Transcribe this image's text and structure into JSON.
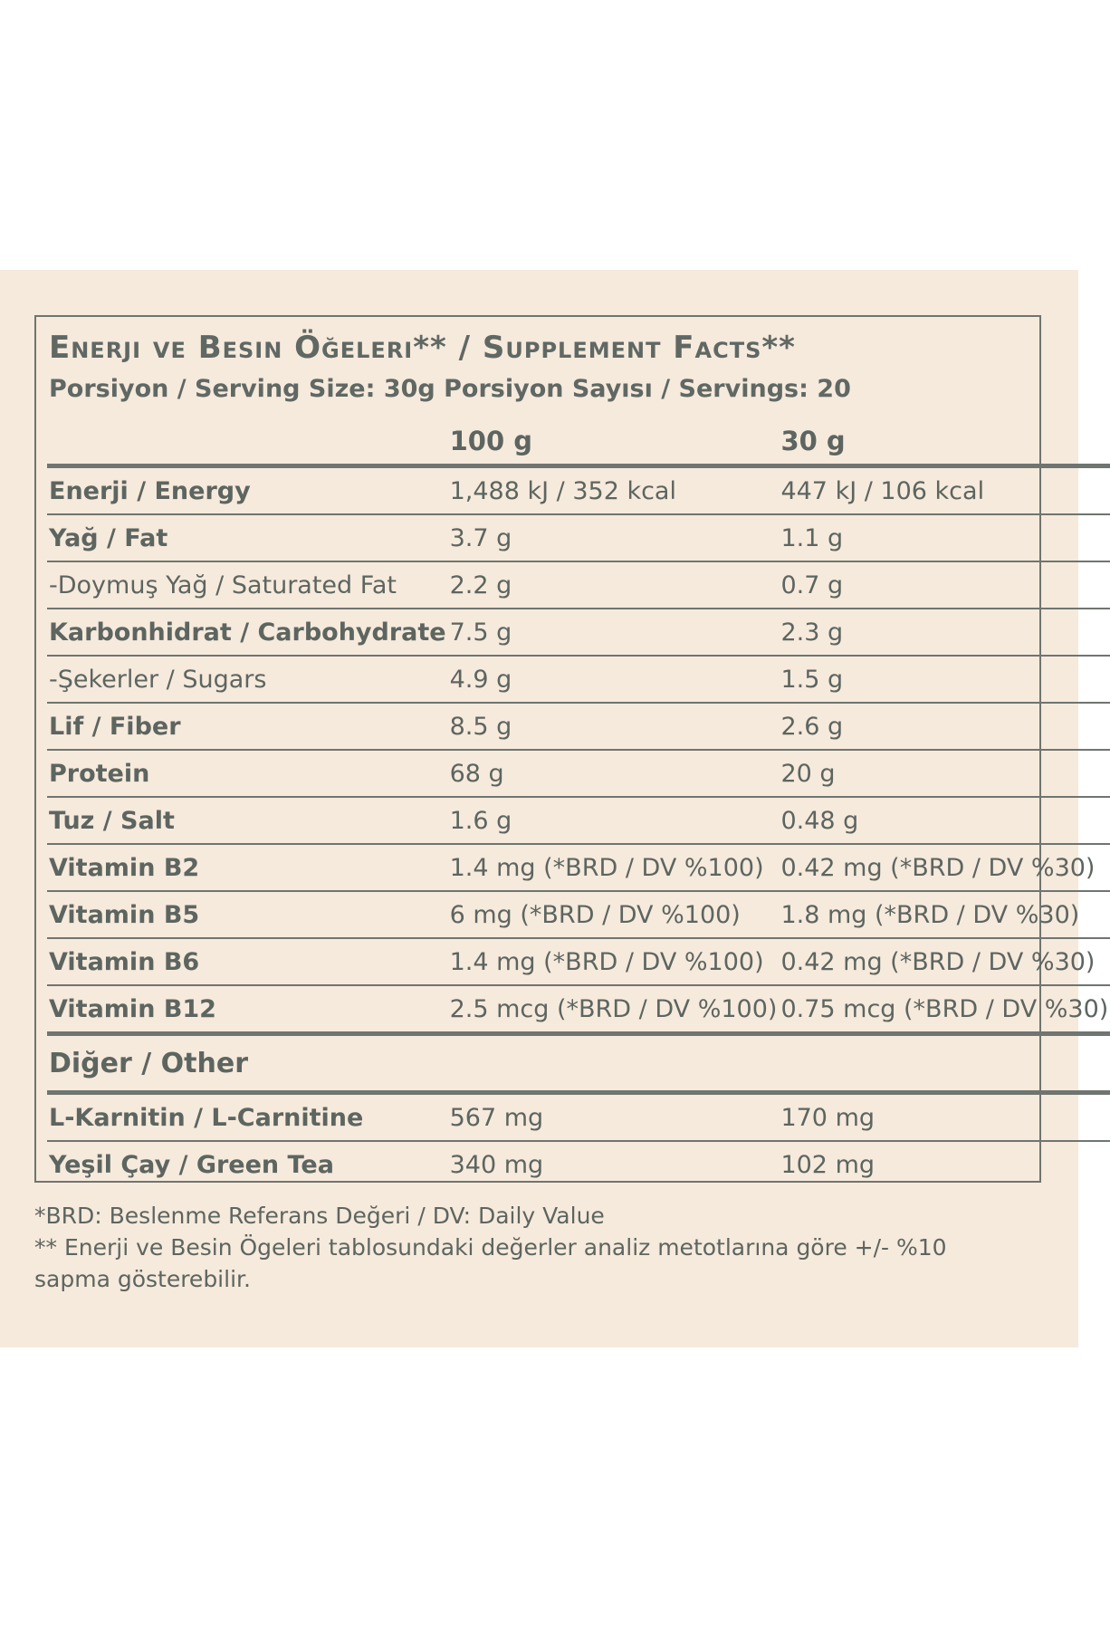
{
  "header": {
    "title": "Enerji ve Besin Öğeleri** / Supplement Facts**",
    "serving_line": "Porsiyon / Serving Size: 30g Porsiyon Sayısı / Servings: 20"
  },
  "columns": {
    "per100": "100 g",
    "per30": "30 g"
  },
  "rows": [
    {
      "name": "Enerji / Energy",
      "per100": "1,488 kJ / 352 kcal",
      "per30": "447 kJ / 106 kcal"
    },
    {
      "name": "Yağ / Fat",
      "per100": "3.7 g",
      "per30": "1.1 g"
    },
    {
      "name": "-Doymuş Yağ / Saturated Fat",
      "per100": "2.2 g",
      "per30": "0.7 g"
    },
    {
      "name": "Karbonhidrat / Carbohydrate",
      "per100": "7.5 g",
      "per30": "2.3 g"
    },
    {
      "name": "-Şekerler / Sugars",
      "per100": "4.9 g",
      "per30": "1.5 g"
    },
    {
      "name": "Lif / Fiber",
      "per100": "8.5 g",
      "per30": "2.6 g"
    },
    {
      "name": "Protein",
      "per100": "68 g",
      "per30": "20 g"
    },
    {
      "name": "Tuz / Salt",
      "per100": "1.6 g",
      "per30": "0.48 g"
    },
    {
      "name": "Vitamin B2",
      "per100": "1.4 mg (*BRD / DV %100)",
      "per30": "0.42 mg (*BRD / DV %30)"
    },
    {
      "name": "Vitamin B5",
      "per100": "6 mg (*BRD / DV %100)",
      "per30": "1.8 mg (*BRD / DV %30)"
    },
    {
      "name": "Vitamin B6",
      "per100": "1.4 mg (*BRD / DV %100)",
      "per30": "0.42 mg (*BRD / DV %30)"
    },
    {
      "name": "Vitamin B12",
      "per100": "2.5 mcg (*BRD / DV %100)",
      "per30": "0.75 mcg (*BRD / DV %30)"
    }
  ],
  "other": {
    "heading": "Diğer / Other",
    "rows": [
      {
        "name": "L-Karnitin / L-Carnitine",
        "per100": "567 mg",
        "per30": "170 mg"
      },
      {
        "name": "Yeşil Çay / Green Tea",
        "per100": "340 mg",
        "per30": "102 mg"
      }
    ]
  },
  "footnotes": {
    "line1": "*BRD: Beslenme Referans Değeri / DV: Daily Value",
    "line2": "** Enerji ve Besin Ögeleri tablosundaki değerler analiz metotlarına göre +/- %10",
    "line3": "sapma gösterebilir."
  }
}
